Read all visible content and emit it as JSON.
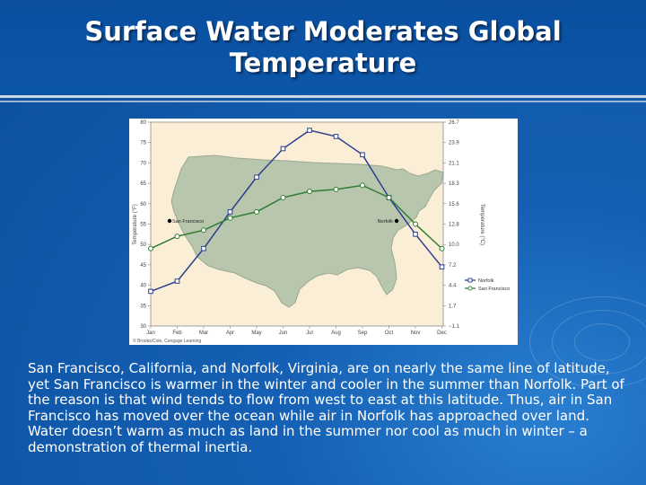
{
  "title": "Surface Water Moderates Global\nTemperature",
  "body_text": "San Francisco, California, and Norfolk, Virginia, are on nearly the same line of latitude, yet San Francisco is warmer in the winter and cooler in the summer than Norfolk. Part of the reason is that wind tends to flow from west to east at this latitude. Thus, air in San Francisco has moved over the ocean while air in Norfolk has approached over land. Water doesn’t warm as much as land in the summer nor cool as much in winter – a demonstration of thermal inertia.",
  "colors": {
    "norfolk": "#2e3f8f",
    "san_francisco": "#2f7d32",
    "plot_background": "#fbeed6",
    "land": "#b8c6ad"
  },
  "chart_data": {
    "type": "line",
    "categories": [
      "Jan",
      "Feb",
      "Mar",
      "Apr",
      "May",
      "Jun",
      "Jul",
      "Aug",
      "Sep",
      "Oct",
      "Nov",
      "Dec"
    ],
    "series": [
      {
        "name": "Norfolk",
        "values": [
          38.5,
          41,
          49,
          58,
          66.5,
          73.5,
          78,
          76.5,
          72,
          61.5,
          52.5,
          44.5
        ]
      },
      {
        "name": "San Francisco",
        "values": [
          49,
          52,
          53.5,
          56.5,
          58,
          61.5,
          63,
          63.5,
          64.5,
          61.5,
          55,
          49
        ]
      }
    ],
    "ylabel": "Temperature (°F)",
    "ylabel_right": "Temperature (°C)",
    "ylim": [
      30,
      80
    ],
    "yticks_left": [
      "80",
      "75",
      "70",
      "65",
      "60",
      "55",
      "50",
      "45",
      "40",
      "35",
      "30"
    ],
    "yticks_right": [
      "26.7",
      "23.9",
      "21.1",
      "18.3",
      "15.6",
      "12.8",
      "10.0",
      "7.2",
      "4.4",
      "1.7",
      "−1.1"
    ],
    "city_labels": [
      "San Francisco",
      "Norfolk"
    ],
    "legend": [
      "Norfolk",
      "San Francisco"
    ],
    "legend_position": "bottom-right",
    "credit": "© Brooks/Cole, Cengage Learning",
    "grid": false
  }
}
